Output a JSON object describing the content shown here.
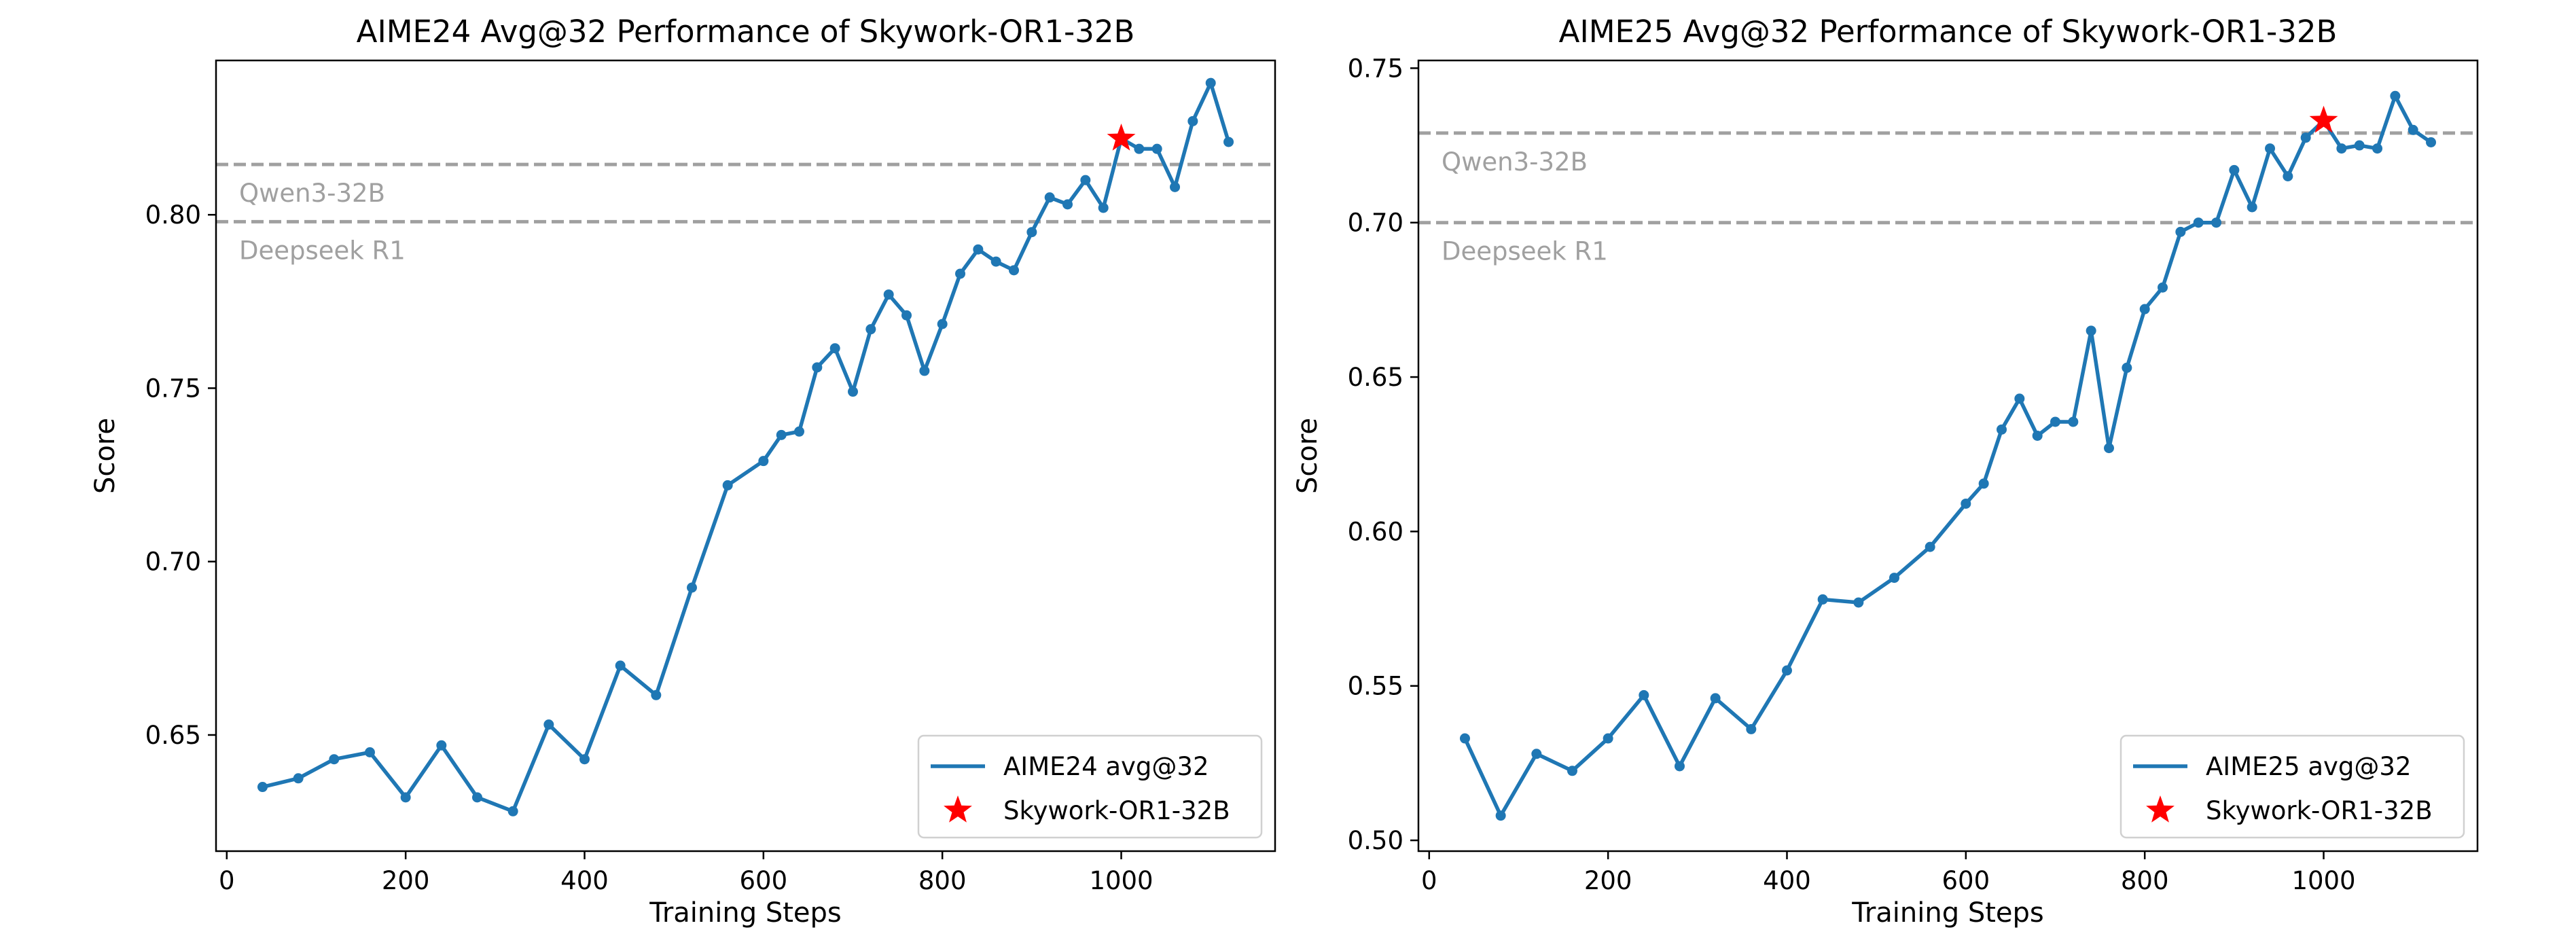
{
  "chart_data": [
    {
      "type": "line",
      "title": "AIME24 Avg@32 Performance of Skywork-OR1-32B",
      "xlabel": "Training Steps",
      "ylabel": "Score",
      "xlim": [
        -12,
        1172
      ],
      "ylim": [
        0.6165,
        0.8445
      ],
      "xticks": [
        0,
        200,
        400,
        600,
        800,
        1000
      ],
      "xtick_labels": [
        "0",
        "200",
        "400",
        "600",
        "800",
        "1000"
      ],
      "yticks": [
        0.65,
        0.7,
        0.75,
        0.8
      ],
      "ytick_labels": [
        "0.65",
        "0.70",
        "0.75",
        "0.80"
      ],
      "grid": false,
      "legend_position": "lower-right",
      "series": [
        {
          "name": "AIME24 avg@32",
          "color": "#1f77b4",
          "x": [
            40,
            80,
            120,
            160,
            200,
            240,
            280,
            320,
            360,
            400,
            440,
            480,
            520,
            560,
            600,
            620,
            640,
            660,
            680,
            700,
            720,
            740,
            760,
            780,
            800,
            820,
            840,
            860,
            880,
            900,
            920,
            940,
            960,
            980,
            1000,
            1020,
            1040,
            1060,
            1080,
            1100,
            1120
          ],
          "y": [
            0.635,
            0.6375,
            0.643,
            0.645,
            0.632,
            0.647,
            0.632,
            0.628,
            0.653,
            0.643,
            0.67,
            0.6615,
            0.6925,
            0.722,
            0.729,
            0.7365,
            0.7375,
            0.756,
            0.7615,
            0.749,
            0.767,
            0.777,
            0.771,
            0.755,
            0.7685,
            0.783,
            0.79,
            0.7865,
            0.784,
            0.795,
            0.805,
            0.803,
            0.81,
            0.802,
            0.822,
            0.819,
            0.819,
            0.808,
            0.827,
            0.838,
            0.821
          ]
        }
      ],
      "highlight": {
        "name": "Skywork-OR1-32B",
        "x": 1000,
        "y": 0.822,
        "color": "#ff0000"
      },
      "reference_lines": [
        {
          "label": "Qwen3-32B",
          "y": 0.8145,
          "color": "#a0a0a0"
        },
        {
          "label": "Deepseek R1",
          "y": 0.798,
          "color": "#a0a0a0"
        }
      ]
    },
    {
      "type": "line",
      "title": "AIME25 Avg@32 Performance of Skywork-OR1-32B",
      "xlabel": "Training Steps",
      "ylabel": "Score",
      "xlim": [
        -12,
        1172
      ],
      "ylim": [
        0.4965,
        0.7525
      ],
      "xticks": [
        0,
        200,
        400,
        600,
        800,
        1000
      ],
      "xtick_labels": [
        "0",
        "200",
        "400",
        "600",
        "800",
        "1000"
      ],
      "yticks": [
        0.5,
        0.55,
        0.6,
        0.65,
        0.7,
        0.75
      ],
      "ytick_labels": [
        "0.50",
        "0.55",
        "0.60",
        "0.65",
        "0.70",
        "0.75"
      ],
      "grid": false,
      "legend_position": "lower-right",
      "series": [
        {
          "name": "AIME25 avg@32",
          "color": "#1f77b4",
          "x": [
            40,
            80,
            120,
            160,
            200,
            240,
            280,
            320,
            360,
            400,
            440,
            480,
            520,
            560,
            600,
            620,
            640,
            660,
            680,
            700,
            720,
            740,
            760,
            780,
            800,
            820,
            840,
            860,
            880,
            900,
            920,
            940,
            960,
            980,
            1000,
            1020,
            1040,
            1060,
            1080,
            1100,
            1120
          ],
          "y": [
            0.533,
            0.508,
            0.528,
            0.5225,
            0.533,
            0.547,
            0.524,
            0.546,
            0.536,
            0.555,
            0.578,
            0.577,
            0.585,
            0.595,
            0.609,
            0.6155,
            0.633,
            0.643,
            0.631,
            0.6355,
            0.6355,
            0.665,
            0.627,
            0.653,
            0.672,
            0.679,
            0.697,
            0.7,
            0.7,
            0.717,
            0.705,
            0.724,
            0.715,
            0.7275,
            0.733,
            0.724,
            0.725,
            0.724,
            0.741,
            0.73,
            0.726
          ]
        }
      ],
      "highlight": {
        "name": "Skywork-OR1-32B",
        "x": 1000,
        "y": 0.733,
        "color": "#ff0000"
      },
      "reference_lines": [
        {
          "label": "Qwen3-32B",
          "y": 0.729,
          "color": "#a0a0a0"
        },
        {
          "label": "Deepseek R1",
          "y": 0.7,
          "color": "#a0a0a0"
        }
      ]
    }
  ]
}
